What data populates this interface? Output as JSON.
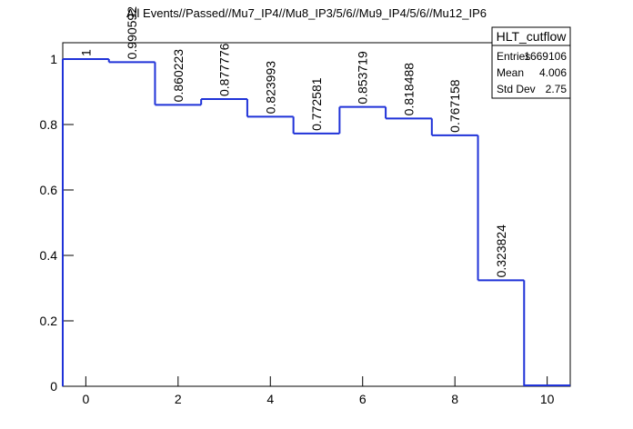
{
  "chart_data": {
    "type": "histogram",
    "title": "All Events//Passed//Mu7_IP4//Mu8_IP3/5/6//Mu9_IP4/5/6//Mu12_IP6",
    "bins": [
      -0.5,
      0.5,
      1.5,
      2.5,
      3.5,
      4.5,
      5.5,
      6.5,
      7.5,
      8.5,
      9.5
    ],
    "values": [
      1,
      0.990592,
      0.860223,
      0.877776,
      0.823993,
      0.772581,
      0.853719,
      0.818488,
      0.767158,
      0.323824
    ],
    "color": "#1f32d8",
    "xlim": [
      -0.5,
      10.5
    ],
    "xticks": [
      0,
      2,
      4,
      6,
      8,
      10
    ],
    "ylim": [
      0,
      1.05
    ],
    "yticks": [
      0,
      0.2,
      0.4,
      0.6,
      0.8,
      1
    ],
    "stats": {
      "title": "HLT_cutflow",
      "rows": [
        [
          "Entries",
          "1669106"
        ],
        [
          "Mean",
          "4.006"
        ],
        [
          "Std Dev",
          "2.75"
        ]
      ]
    }
  }
}
